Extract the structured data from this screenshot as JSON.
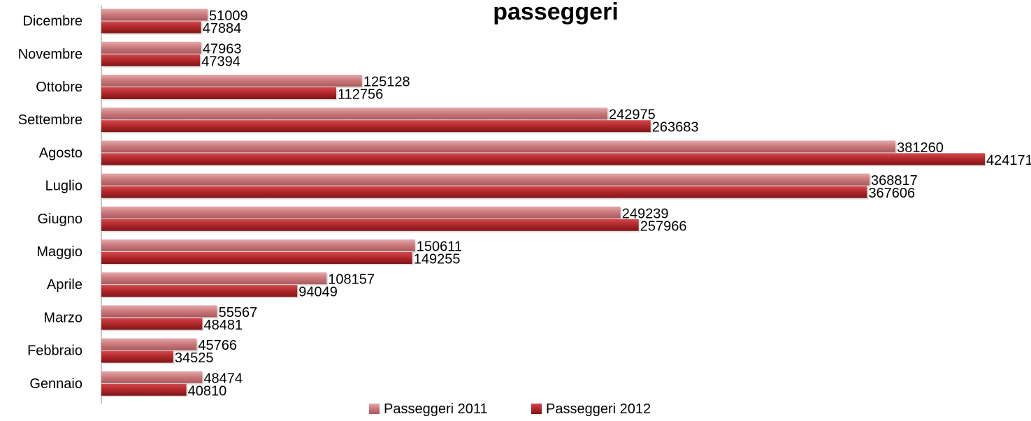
{
  "chart_data": {
    "type": "bar",
    "orientation": "horizontal",
    "title": "passeggeri",
    "categories": [
      "Gennaio",
      "Febbraio",
      "Marzo",
      "Aprile",
      "Maggio",
      "Giugno",
      "Luglio",
      "Agosto",
      "Settembre",
      "Ottobre",
      "Novembre",
      "Dicembre"
    ],
    "series": [
      {
        "name": "Passeggeri 2011",
        "color": "#c9777a",
        "values": [
          48474,
          45766,
          55567,
          108157,
          150611,
          249239,
          368817,
          381260,
          242975,
          125128,
          47963,
          51009
        ]
      },
      {
        "name": "Passeggeri 2012",
        "color": "#b0262a",
        "values": [
          40810,
          34525,
          48481,
          94049,
          149255,
          257966,
          367606,
          424171,
          263683,
          112756,
          47394,
          47884
        ]
      }
    ],
    "xlim": [
      0,
      424171
    ],
    "data_labels": true,
    "grid": false,
    "legend": "bottom"
  }
}
